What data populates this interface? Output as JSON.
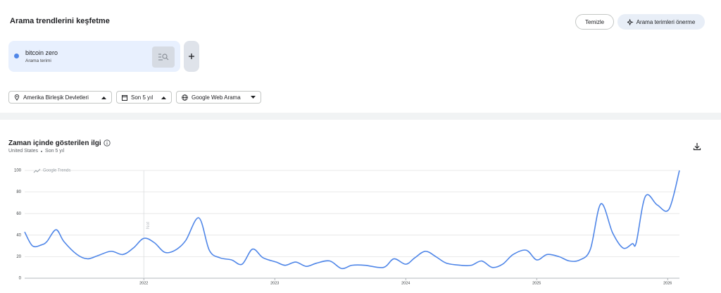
{
  "header": {
    "title": "Arama trendlerini keşfetme",
    "buttons": [
      "Temizle",
      "Arama terimleri önerme"
    ]
  },
  "search_term": {
    "kind": "Arama terimi"
  },
  "filters": [
    "Amerika Birleşik Devletleri",
    "Son 5 yıl",
    "Google Web Arama"
  ],
  "section": {
    "title": "Zaman içinde gösterilen ilgi",
    "region": "United States",
    "period": "Son 5 yıl"
  },
  "chart_data": {
    "type": "line",
    "watermark": "Google Trends",
    "x": [
      2021.09,
      2021.15,
      2021.22,
      2021.26,
      2021.33,
      2021.39,
      2021.49,
      2021.57,
      2021.65,
      2021.75,
      2021.84,
      2021.92,
      2022.0,
      2022.08,
      2022.16,
      2022.24,
      2022.32,
      2022.42,
      2022.5,
      2022.58,
      2022.67,
      2022.75,
      2022.83,
      2022.91,
      2023.01,
      2023.08,
      2023.16,
      2023.24,
      2023.32,
      2023.42,
      2023.51,
      2023.59,
      2023.69,
      2023.83,
      2023.91,
      2024.0,
      2024.07,
      2024.15,
      2024.23,
      2024.31,
      2024.42,
      2024.5,
      2024.58,
      2024.66,
      2024.74,
      2024.82,
      2024.92,
      2025.0,
      2025.08,
      2025.17,
      2025.25,
      2025.33,
      2025.41,
      2025.49,
      2025.58,
      2025.66,
      2025.73,
      2025.76,
      2025.83,
      2025.92,
      2026.01,
      2026.09
    ],
    "series": [
      {
        "name": "bitcoin zero",
        "color": "#4f86e8",
        "values": [
          43,
          30,
          31,
          34,
          45,
          34,
          22,
          18,
          21,
          25,
          22,
          28,
          37,
          33,
          24,
          26,
          35,
          56,
          26,
          19,
          17,
          13,
          27,
          19,
          15,
          12,
          15,
          11,
          14,
          16,
          9,
          12,
          12,
          10,
          18,
          13,
          19,
          25,
          20,
          14,
          12,
          12,
          16,
          10,
          13,
          22,
          26,
          17,
          22,
          20,
          16,
          17,
          27,
          69,
          42,
          28,
          32,
          33,
          76,
          68,
          64,
          100
        ]
      }
    ],
    "xlim": [
      2021.09,
      2026.09
    ],
    "xticks": [
      2022,
      2023,
      2024,
      2025,
      2026
    ],
    "ylim": [
      0,
      100
    ],
    "yticks": [
      0,
      20,
      40,
      60,
      80,
      100
    ],
    "grid": true,
    "annotations": [
      {
        "x": 2022,
        "text": "Not"
      }
    ]
  }
}
